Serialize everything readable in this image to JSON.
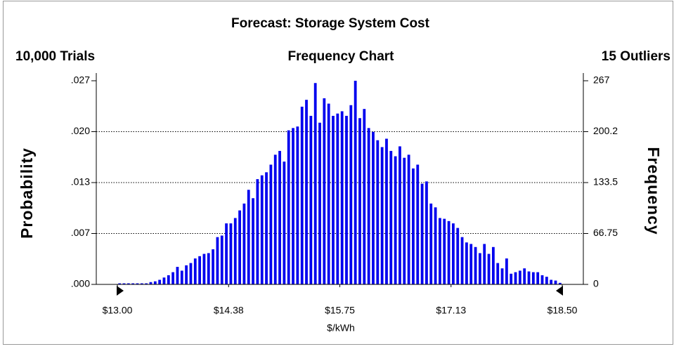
{
  "chart_data": {
    "type": "histogram",
    "title": "Forecast: Storage System Cost",
    "trials": "10,000 Trials",
    "subtitle": "Frequency Chart",
    "outliers": "15 Outliers",
    "x_label": "$/kWh",
    "y_label": "Probability",
    "y2_label": "Frequency",
    "xlim": [
      13.0,
      18.5
    ],
    "xticks": [
      {
        "value": 13.0,
        "label": "$13.00"
      },
      {
        "value": 14.375,
        "label": "$14.38"
      },
      {
        "value": 15.75,
        "label": "$15.75"
      },
      {
        "value": 17.125,
        "label": "$17.13"
      },
      {
        "value": 18.5,
        "label": "$18.50"
      }
    ],
    "ylim": [
      0,
      0.0267
    ],
    "yticks": [
      {
        "value": 0,
        "label": ".000"
      },
      {
        "value": 0.006675,
        "label": ".007"
      },
      {
        "value": 0.01335,
        "label": ".013"
      },
      {
        "value": 0.020025,
        "label": ".020"
      },
      {
        "value": 0.0267,
        "label": ".027"
      }
    ],
    "y2lim": [
      0,
      267
    ],
    "y2ticks": [
      0,
      66.75,
      133.5,
      {
        "value": 200.25,
        "label": "200.2"
      },
      267
    ],
    "grid": true,
    "bins": [
      13,
      13.055,
      13.11,
      13.165,
      13.22,
      13.275,
      13.33,
      13.385,
      13.44,
      13.495,
      13.55,
      13.605,
      13.66,
      13.715,
      13.77,
      13.825,
      13.88,
      13.935,
      13.99,
      14.045,
      14.1,
      14.155,
      14.21,
      14.265,
      14.32,
      14.375,
      14.43,
      14.485,
      14.54,
      14.595,
      14.65,
      14.705,
      14.76,
      14.815,
      14.87,
      14.925,
      14.98,
      15.035,
      15.09,
      15.145,
      15.2,
      15.255,
      15.31,
      15.365,
      15.42,
      15.475,
      15.53,
      15.585,
      15.64,
      15.695,
      15.75,
      15.805,
      15.86,
      15.915,
      15.97,
      16.025,
      16.08,
      16.135,
      16.19,
      16.245,
      16.3,
      16.355,
      16.41,
      16.465,
      16.52,
      16.575,
      16.63,
      16.685,
      16.74,
      16.795,
      16.85,
      16.905,
      16.96,
      17.015,
      17.07,
      17.125,
      17.18,
      17.235,
      17.29,
      17.345,
      17.4,
      17.455,
      17.51,
      17.565,
      17.62,
      17.675,
      17.73,
      17.785,
      17.84,
      17.895,
      17.95,
      18.005,
      18.06,
      18.115,
      18.17,
      18.225,
      18.28,
      18.335,
      18.39,
      18.445,
      18.5
    ],
    "series": [
      {
        "color": "#0000ee",
        "axis": "y2",
        "values": [
          0,
          0,
          0,
          0,
          0,
          0,
          0,
          3,
          4,
          6,
          9,
          12,
          16,
          23,
          18,
          25,
          28,
          34,
          37,
          40,
          41,
          46,
          62,
          64,
          80,
          80,
          87,
          97,
          106,
          124,
          113,
          138,
          143,
          147,
          157,
          170,
          175,
          161,
          202,
          205,
          207,
          233,
          242,
          221,
          264,
          212,
          244,
          237,
          221,
          224,
          227,
          221,
          235,
          267,
          218,
          230,
          205,
          200,
          189,
          180,
          191,
          175,
          168,
          181,
          166,
          170,
          152,
          157,
          132,
          135,
          106,
          101,
          87,
          86,
          83,
          80,
          74,
          62,
          55,
          53,
          49,
          41,
          53,
          40,
          49,
          28,
          21,
          34,
          14,
          16,
          18,
          21,
          17,
          16,
          16,
          12,
          10,
          6,
          5,
          2
        ]
      }
    ]
  }
}
